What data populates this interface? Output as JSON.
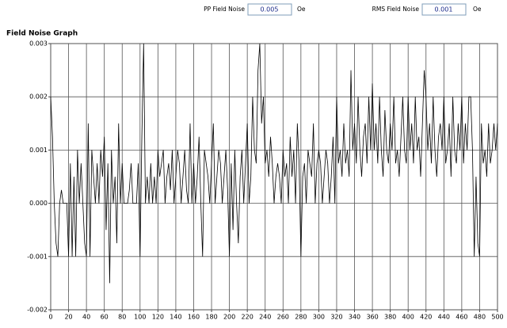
{
  "controls": [
    {
      "label": "PP Field Noise",
      "value": "0.005",
      "unit": "Oe"
    },
    {
      "label": "RMS Field Noise",
      "value": "0.001",
      "unit": "Oe"
    }
  ],
  "chart_data": {
    "type": "line",
    "title": "Field Noise Graph",
    "x": [
      0,
      2,
      4,
      6,
      8,
      10,
      12,
      14,
      16,
      18,
      20,
      22,
      24,
      26,
      28,
      30,
      32,
      34,
      36,
      38,
      40,
      42,
      44,
      46,
      48,
      50,
      52,
      54,
      56,
      58,
      60,
      62,
      64,
      66,
      68,
      70,
      72,
      74,
      76,
      78,
      80,
      82,
      84,
      86,
      88,
      90,
      92,
      94,
      96,
      98,
      100,
      102,
      104,
      106,
      108,
      110,
      112,
      114,
      116,
      118,
      120,
      122,
      124,
      126,
      128,
      130,
      132,
      134,
      136,
      138,
      140,
      142,
      144,
      146,
      148,
      150,
      152,
      154,
      156,
      158,
      160,
      162,
      164,
      166,
      168,
      170,
      172,
      174,
      176,
      178,
      180,
      182,
      184,
      186,
      188,
      190,
      192,
      194,
      196,
      198,
      200,
      202,
      204,
      206,
      208,
      210,
      212,
      214,
      216,
      218,
      220,
      222,
      224,
      226,
      228,
      230,
      232,
      234,
      236,
      238,
      240,
      242,
      244,
      246,
      248,
      250,
      252,
      254,
      256,
      258,
      260,
      262,
      264,
      266,
      268,
      270,
      272,
      274,
      276,
      278,
      280,
      282,
      284,
      286,
      288,
      290,
      292,
      294,
      296,
      298,
      300,
      302,
      304,
      306,
      308,
      310,
      312,
      314,
      316,
      318,
      320,
      322,
      324,
      326,
      328,
      330,
      332,
      334,
      336,
      338,
      340,
      342,
      344,
      346,
      348,
      350,
      352,
      354,
      356,
      358,
      360,
      362,
      364,
      366,
      368,
      370,
      372,
      374,
      376,
      378,
      380,
      382,
      384,
      386,
      388,
      390,
      392,
      394,
      396,
      398,
      400,
      402,
      404,
      406,
      408,
      410,
      412,
      414,
      416,
      418,
      420,
      422,
      424,
      426,
      428,
      430,
      432,
      434,
      436,
      438,
      440,
      442,
      444,
      446,
      448,
      450,
      452,
      454,
      456,
      458,
      460,
      462,
      464,
      466,
      468,
      470,
      472,
      474,
      476,
      478,
      480,
      482,
      484,
      486,
      488,
      490,
      492,
      494,
      496,
      498,
      500
    ],
    "series": [
      {
        "color": "#000000",
        "values": [
          0.002,
          0.00125,
          0,
          -0.00075,
          -0.001,
          0,
          0.00025,
          0,
          0,
          0,
          -0.001,
          0.00075,
          -0.001,
          0.0005,
          -0.001,
          0.001,
          0,
          0.00075,
          0,
          -0.00075,
          -0.001,
          0.0015,
          -0.001,
          0.001,
          0.0005,
          0,
          0.00075,
          0,
          0.001,
          0.0005,
          0.00125,
          -0.0005,
          0.00075,
          -0.0015,
          0.001,
          0,
          0.0005,
          -0.00075,
          0.0015,
          0,
          0.00075,
          0,
          0,
          0,
          0.00025,
          0.00075,
          0,
          0,
          0,
          0.00075,
          -0.001,
          0.00125,
          0.003,
          0,
          0.0005,
          0,
          0.00075,
          0,
          0.0005,
          0,
          0.001,
          0.0005,
          0.00075,
          0.001,
          0,
          0.0005,
          0.00075,
          0.00025,
          0.001,
          0,
          0.0005,
          0.001,
          0.00075,
          0,
          0.0005,
          0.001,
          0.00025,
          0,
          0.0015,
          0,
          0.00075,
          0,
          0.0005,
          0.00125,
          0,
          -0.001,
          0.001,
          0.00075,
          0.0005,
          0,
          0.00075,
          0.0015,
          0,
          0.0005,
          0.001,
          0.00075,
          0,
          0.0005,
          0.001,
          0.00025,
          -0.001,
          0.00075,
          -0.0005,
          0.001,
          0,
          -0.00075,
          0.0005,
          0.001,
          0,
          0.00075,
          0.0015,
          0,
          0.0005,
          0.002,
          0.001,
          0.00075,
          0.0025,
          0.003,
          0.0015,
          0.002,
          0.00075,
          0.001,
          0.0005,
          0.00125,
          0.00075,
          0,
          0.0005,
          0.00075,
          0.0005,
          0,
          0.001,
          0.0005,
          0.00075,
          0,
          0.00125,
          0.0005,
          0.001,
          0,
          0.0015,
          0.00075,
          -0.001,
          0.0005,
          0.00075,
          0,
          0.001,
          0.00075,
          0.0005,
          0.0015,
          0,
          0.00075,
          0.001,
          0.00075,
          0,
          0.0005,
          0.001,
          0.00075,
          0,
          0.0005,
          0.00125,
          0,
          0.002,
          0.00075,
          0.001,
          0.0005,
          0.0015,
          0.00075,
          0.001,
          0.0005,
          0.0025,
          0.001,
          0.0015,
          0.00075,
          0.002,
          0.001,
          0.0005,
          0.00125,
          0.0015,
          0.00075,
          0.002,
          0.001,
          0.00225,
          0.001,
          0.0015,
          0.00075,
          0.002,
          0.001,
          0.0005,
          0.00175,
          0.001,
          0.00075,
          0.0015,
          0.001,
          0.002,
          0.00075,
          0.001,
          0.0005,
          0.00125,
          0.002,
          0.001,
          0.00075,
          0.002,
          0.001,
          0.0015,
          0.00075,
          0.002,
          0.001,
          0.00125,
          0.0005,
          0.0015,
          0.0025,
          0.002,
          0.001,
          0.0015,
          0.00075,
          0.002,
          0.001,
          0.0005,
          0.00125,
          0.0015,
          0.001,
          0.002,
          0.00075,
          0.001,
          0.0015,
          0.0005,
          0.002,
          0.001,
          0.00075,
          0.0015,
          0.001,
          0.002,
          0.00075,
          0.0015,
          0.001,
          0.002,
          0.002,
          0.001,
          -0.001,
          0.0005,
          -0.00075,
          -0.001,
          0.0015,
          0.00075,
          0.001,
          0.0005,
          0.0015,
          0.00075,
          0.001,
          0.0015,
          0.001,
          0.0015
        ]
      }
    ],
    "xlim": [
      0,
      500
    ],
    "xticks": [
      0,
      20,
      40,
      60,
      80,
      100,
      120,
      140,
      160,
      180,
      200,
      220,
      240,
      260,
      280,
      300,
      320,
      340,
      360,
      380,
      400,
      420,
      440,
      460,
      480,
      500
    ],
    "ylim": [
      -0.002,
      0.003
    ],
    "yticks": [
      -0.002,
      -0.001,
      {
        "value": 0,
        "label": "0.000"
      },
      0.001,
      0.002,
      0.003
    ],
    "grid": true
  }
}
